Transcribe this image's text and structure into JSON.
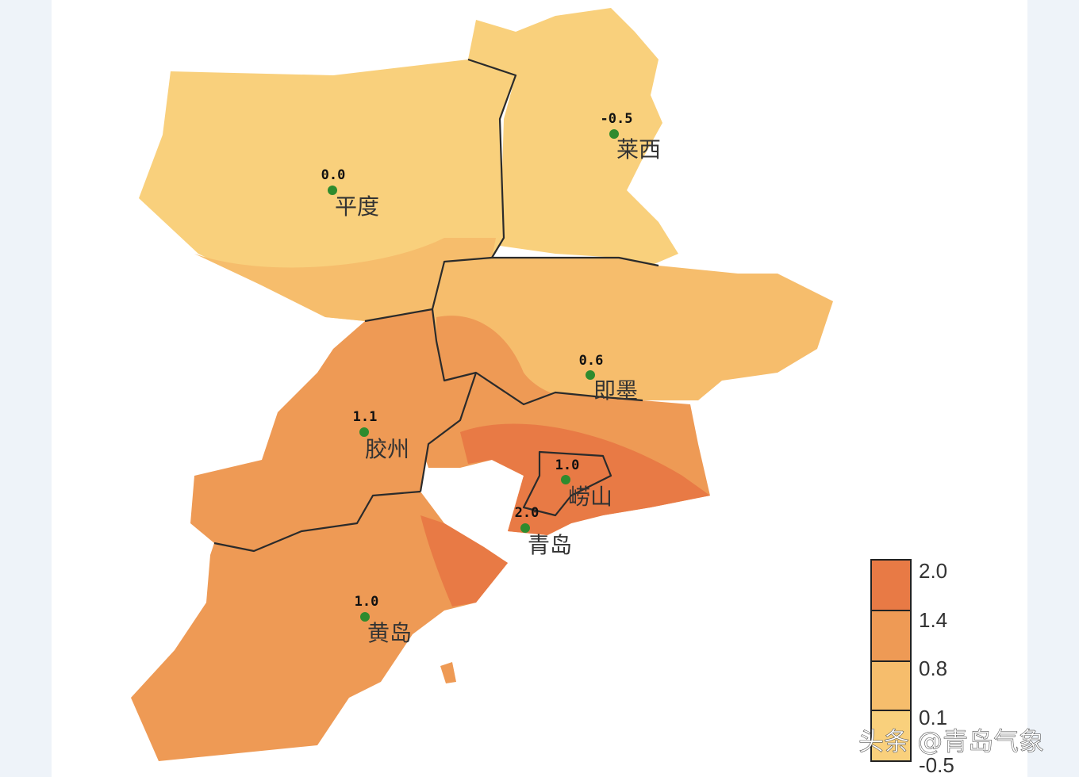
{
  "stations": [
    {
      "value": "0.0",
      "name": "平度"
    },
    {
      "value": "-0.5",
      "name": "莱西"
    },
    {
      "value": "0.6",
      "name": "即墨"
    },
    {
      "value": "1.1",
      "name": "胶州"
    },
    {
      "value": "1.0",
      "name": "崂山"
    },
    {
      "value": "2.0",
      "name": "青岛"
    },
    {
      "value": "1.0",
      "name": "黄岛"
    }
  ],
  "legend": {
    "levels": [
      "2.0",
      "1.4",
      "0.8",
      "0.1",
      "-0.5"
    ]
  },
  "watermark": "头条 @青岛气象"
}
